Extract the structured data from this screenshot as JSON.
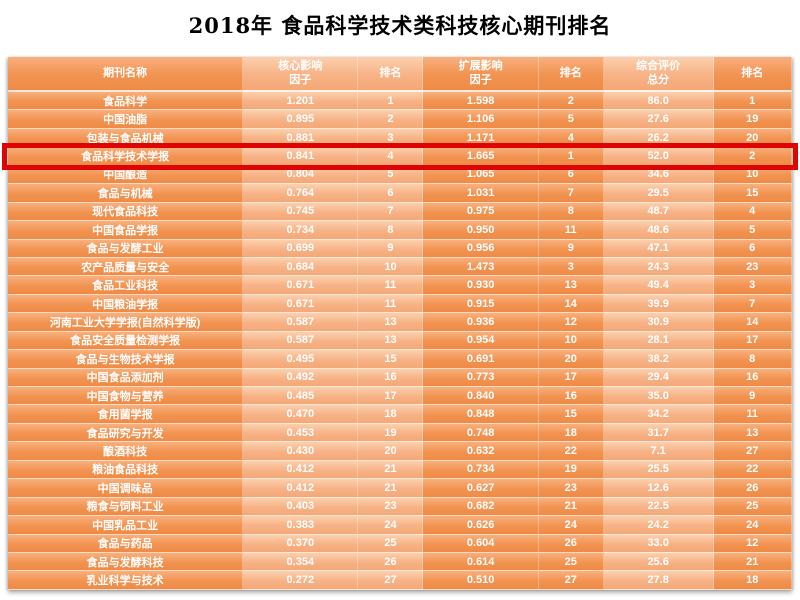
{
  "title": "2018年 食品科学技术类科技核心期刊排名",
  "colors": {
    "band_medium": "#F29351",
    "band_light": "#F7B286",
    "highlight_red": "#DE0404",
    "table_text": "#FFFFFF",
    "title_color": "#000000"
  },
  "chart_data": {
    "type": "table",
    "title": "2018年 食品科学技术类科技核心期刊排名",
    "columns": [
      "期刊名称",
      "核心影响因子",
      "排名",
      "扩展影响因子",
      "排名",
      "综合评价总分",
      "排名"
    ],
    "columns_display": [
      "期刊名称",
      "核心影响\n因子",
      "排名",
      "扩展影响\n因子",
      "排名",
      "综合评价\n总分",
      "排名"
    ],
    "highlighted_row": "食品科学技术学报",
    "highlighted_row_index": 3,
    "rows": [
      [
        "食品科学",
        "1.201",
        "1",
        "1.598",
        "2",
        "86.0",
        "1"
      ],
      [
        "中国油脂",
        "0.895",
        "2",
        "1.106",
        "5",
        "27.6",
        "19"
      ],
      [
        "包装与食品机械",
        "0.881",
        "3",
        "1.171",
        "4",
        "26.2",
        "20"
      ],
      [
        "食品科学技术学报",
        "0.841",
        "4",
        "1.665",
        "1",
        "52.0",
        "2"
      ],
      [
        "中国酿造",
        "0.804",
        "5",
        "1.065",
        "6",
        "34.6",
        "10"
      ],
      [
        "食品与机械",
        "0.764",
        "6",
        "1.031",
        "7",
        "29.5",
        "15"
      ],
      [
        "现代食品科技",
        "0.745",
        "7",
        "0.975",
        "8",
        "48.7",
        "4"
      ],
      [
        "中国食品学报",
        "0.734",
        "8",
        "0.950",
        "11",
        "48.6",
        "5"
      ],
      [
        "食品与发酵工业",
        "0.699",
        "9",
        "0.956",
        "9",
        "47.1",
        "6"
      ],
      [
        "农产品质量与安全",
        "0.684",
        "10",
        "1.473",
        "3",
        "24.3",
        "23"
      ],
      [
        "食品工业科技",
        "0.671",
        "11",
        "0.930",
        "13",
        "49.4",
        "3"
      ],
      [
        "中国粮油学报",
        "0.671",
        "11",
        "0.915",
        "14",
        "39.9",
        "7"
      ],
      [
        "河南工业大学学报(自然科学版)",
        "0.587",
        "13",
        "0.936",
        "12",
        "30.9",
        "14"
      ],
      [
        "食品安全质量检测学报",
        "0.587",
        "13",
        "0.954",
        "10",
        "28.1",
        "17"
      ],
      [
        "食品与生物技术学报",
        "0.495",
        "15",
        "0.691",
        "20",
        "38.2",
        "8"
      ],
      [
        "中国食品添加剂",
        "0.492",
        "16",
        "0.773",
        "17",
        "29.4",
        "16"
      ],
      [
        "中国食物与营养",
        "0.485",
        "17",
        "0.840",
        "16",
        "35.0",
        "9"
      ],
      [
        "食用菌学报",
        "0.470",
        "18",
        "0.848",
        "15",
        "34.2",
        "11"
      ],
      [
        "食品研究与开发",
        "0.453",
        "19",
        "0.748",
        "18",
        "31.7",
        "13"
      ],
      [
        "酿酒科技",
        "0.430",
        "20",
        "0.632",
        "22",
        "7.1",
        "27"
      ],
      [
        "粮油食品科技",
        "0.412",
        "21",
        "0.734",
        "19",
        "25.5",
        "22"
      ],
      [
        "中国调味品",
        "0.412",
        "21",
        "0.627",
        "23",
        "12.6",
        "26"
      ],
      [
        "粮食与饲料工业",
        "0.403",
        "23",
        "0.682",
        "21",
        "22.5",
        "25"
      ],
      [
        "中国乳品工业",
        "0.383",
        "24",
        "0.626",
        "24",
        "24.2",
        "24"
      ],
      [
        "食品与药品",
        "0.370",
        "25",
        "0.604",
        "26",
        "33.0",
        "12"
      ],
      [
        "食品与发酵科技",
        "0.354",
        "26",
        "0.614",
        "25",
        "25.6",
        "21"
      ],
      [
        "乳业科学与技术",
        "0.272",
        "27",
        "0.510",
        "27",
        "27.8",
        "18"
      ]
    ]
  }
}
